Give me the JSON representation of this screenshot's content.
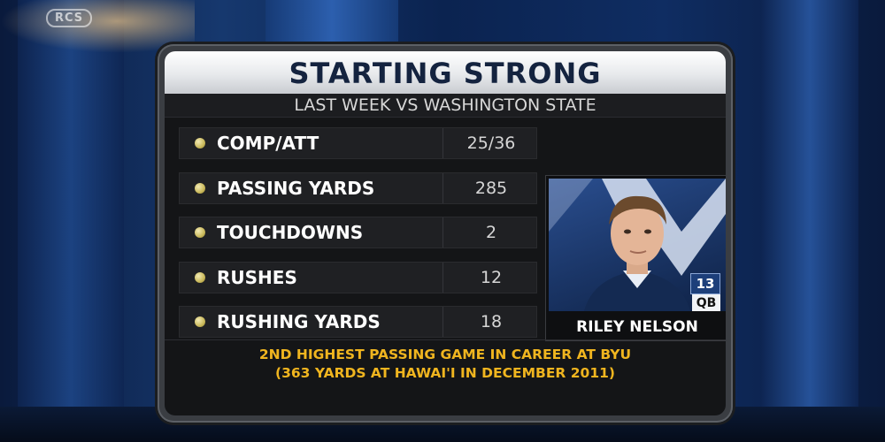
{
  "network_logo": "RCS",
  "graphic": {
    "title": "STARTING STRONG",
    "subtitle": "LAST WEEK VS WASHINGTON STATE",
    "stats": [
      {
        "label": "COMP/ATT",
        "value": "25/36"
      },
      {
        "label": "PASSING YARDS",
        "value": "285"
      },
      {
        "label": "TOUCHDOWNS",
        "value": "2"
      },
      {
        "label": "RUSHES",
        "value": "12"
      },
      {
        "label": "RUSHING YARDS",
        "value": "18"
      }
    ],
    "player": {
      "name": "RILEY NELSON",
      "number": "13",
      "position": "QB"
    },
    "note_line1": "2ND HIGHEST PASSING GAME IN CAREER AT BYU",
    "note_line2": "(363 YARDS AT HAWAI'I IN DECEMBER 2011)"
  },
  "colors": {
    "accent_gold": "#f0b51f",
    "title_navy": "#14233f",
    "jersey_blue": "#1d3f7a"
  }
}
